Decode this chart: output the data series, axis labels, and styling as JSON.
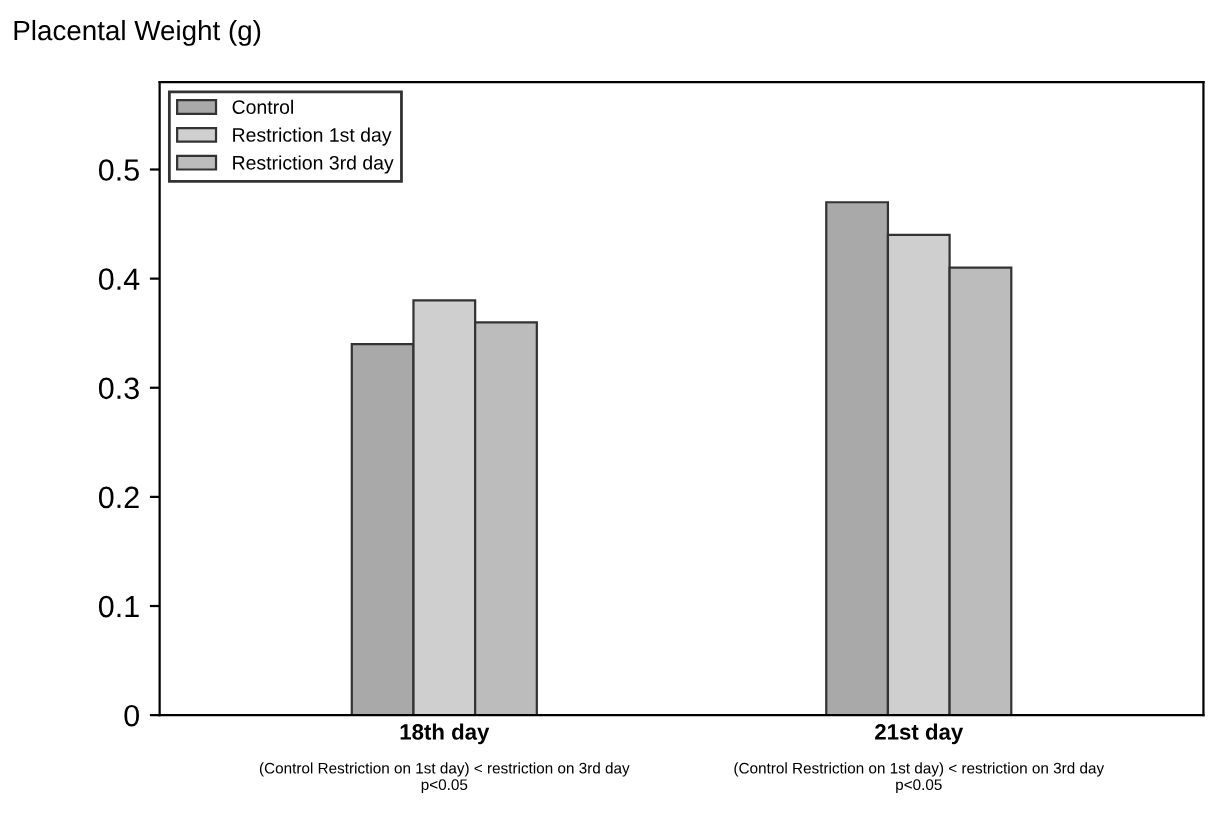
{
  "chart_data": {
    "type": "bar",
    "ylabel": "Placental Weight (g)",
    "categories": [
      "18th day",
      "21st day"
    ],
    "series": [
      {
        "name": "Control",
        "color": "#a9a9a9",
        "values": [
          0.34,
          0.47
        ]
      },
      {
        "name": "Restriction 1st day",
        "color": "#cfcfcf",
        "values": [
          0.38,
          0.44
        ]
      },
      {
        "name": "Restriction 3rd day",
        "color": "#bcbcbc",
        "values": [
          0.36,
          0.41
        ]
      }
    ],
    "annotations": [
      "(Control Restriction on 1st day) < restriction on 3rd day\np<0.05",
      "(Control Restriction on 1st day) < restriction on 3rd day\np<0.05"
    ],
    "ylim": [
      0,
      0.58
    ],
    "yticks": [
      0,
      0.1,
      0.2,
      0.3,
      0.4,
      0.5
    ],
    "legend": "top left",
    "grid": false
  }
}
